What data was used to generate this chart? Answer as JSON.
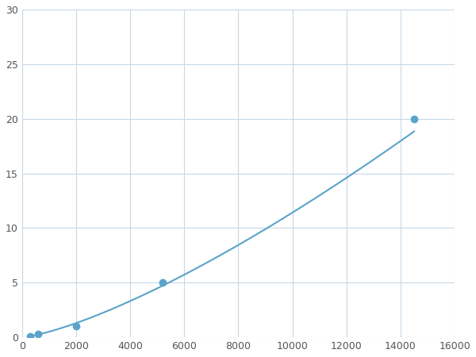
{
  "x_points": [
    300,
    600,
    2000,
    5200,
    14500
  ],
  "y_points": [
    0.1,
    0.3,
    1.0,
    5.0,
    20.0
  ],
  "line_color": "#5BA3C9",
  "marker_color": "#5BA3C9",
  "marker_size": 6,
  "xlim": [
    0,
    16000
  ],
  "ylim": [
    0,
    30
  ],
  "xticks": [
    0,
    2000,
    4000,
    6000,
    8000,
    10000,
    12000,
    14000,
    16000
  ],
  "yticks": [
    0,
    5,
    10,
    15,
    20,
    25,
    30
  ],
  "grid_color": "#C8D8E8",
  "background_color": "#FFFFFF",
  "linewidth": 1.5
}
